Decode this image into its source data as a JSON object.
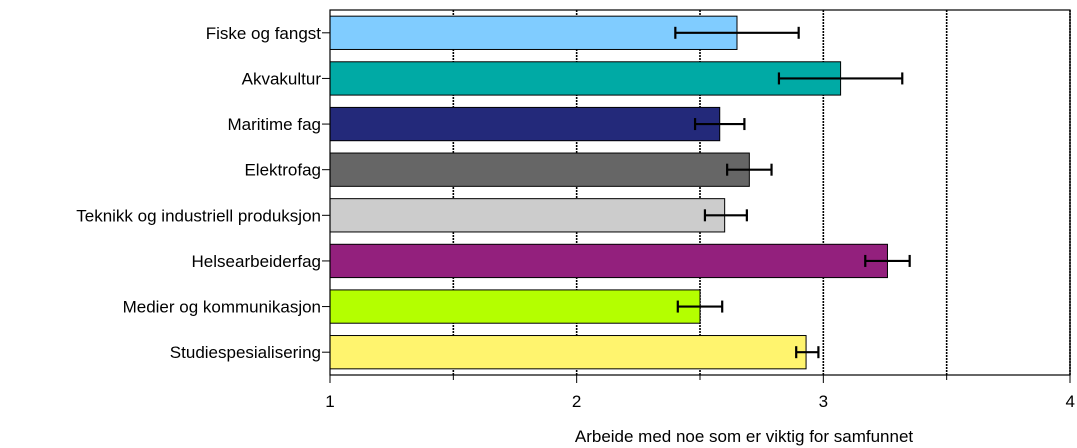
{
  "chart_data": {
    "type": "bar",
    "orientation": "horizontal",
    "categories": [
      "Fiske og fangst",
      "Akvakultur",
      "Maritime fag",
      "Elektrofag",
      "Teknikk og industriell produksjon",
      "Helsearbeiderfag",
      "Medier og kommunikasjon",
      "Studiespesialisering"
    ],
    "values": [
      2.65,
      3.07,
      2.58,
      2.7,
      2.6,
      3.26,
      2.5,
      2.93
    ],
    "error_low": [
      2.4,
      2.82,
      2.48,
      2.61,
      2.52,
      3.17,
      2.41,
      2.89
    ],
    "error_high": [
      2.9,
      3.32,
      2.68,
      2.79,
      2.69,
      3.35,
      2.59,
      2.98
    ],
    "colors": [
      "#80ccff",
      "#00aaa5",
      "#23297a",
      "#666666",
      "#cccccc",
      "#93207d",
      "#b4ff00",
      "#fff46e"
    ],
    "xlabel": "Arbeide med noe som er viktig for samfunnet",
    "xlim": [
      1,
      4
    ],
    "xticks": [
      "1",
      "2",
      "3",
      "4"
    ],
    "gridlines": [
      1.5,
      2,
      2.5,
      3,
      3.5,
      4
    ],
    "grid": true
  }
}
